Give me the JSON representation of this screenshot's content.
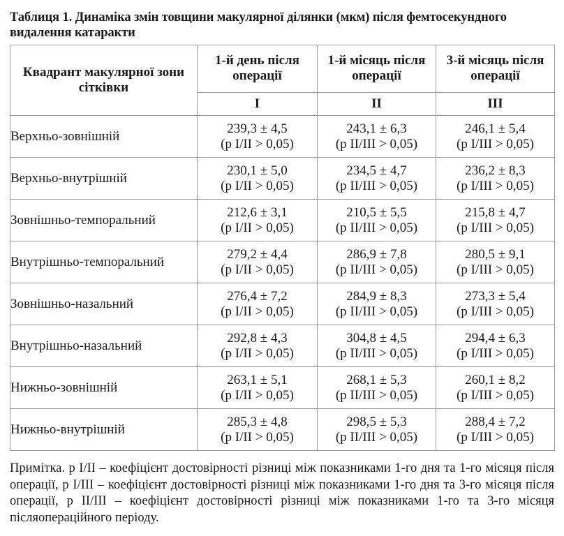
{
  "title": "Таблиця 1. Динаміка змін товщини макулярної ділянки (мкм) після фемтосекундного видалення катаракти",
  "table": {
    "quadrant_header": "Квадрант макулярної зони сітківки",
    "periods": [
      {
        "label": "1-й день після операції",
        "roman": "I"
      },
      {
        "label": "1-й місяць після операції",
        "roman": "II"
      },
      {
        "label": "3-й місяць після операції",
        "roman": "III"
      }
    ],
    "rows": [
      {
        "name": "Верхньо-зовнішній",
        "cells": [
          {
            "value": "239,3 ± 4,5",
            "p": "(p I/II > 0,05)"
          },
          {
            "value": "243,1 ± 6,3",
            "p": "(p II/III > 0,05)"
          },
          {
            "value": "246,1 ± 5,4",
            "p": "(p I/III > 0,05)"
          }
        ]
      },
      {
        "name": "Верхньо-внутрішній",
        "cells": [
          {
            "value": "230,1 ± 5,0",
            "p": "(p I/II > 0,05)"
          },
          {
            "value": "234,5 ± 4,7",
            "p": "(p II/III > 0,05)"
          },
          {
            "value": "236,2 ± 8,3",
            "p": "(p I/III > 0,05)"
          }
        ]
      },
      {
        "name": "Зовнішньо-темпоральний",
        "cells": [
          {
            "value": "212,6 ± 3,1",
            "p": "(p I/II > 0,05)"
          },
          {
            "value": "210,5 ± 5,5",
            "p": "(p II/III > 0,05)"
          },
          {
            "value": "215,8 ± 4,7",
            "p": "(p I/III > 0,05)"
          }
        ]
      },
      {
        "name": "Внутрішньо-темпоральний",
        "cells": [
          {
            "value": "279,2 ± 4,4",
            "p": "(p I/II > 0,05)"
          },
          {
            "value": "286,9 ± 7,8",
            "p": "(p II/III > 0,05)"
          },
          {
            "value": "280,5 ± 9,1",
            "p": "(p I/III > 0,05)"
          }
        ]
      },
      {
        "name": "Зовнішньо-назальний",
        "cells": [
          {
            "value": "276,4 ± 7,2",
            "p": "(p I/II > 0,05)"
          },
          {
            "value": "284,9 ± 8,3",
            "p": "(p II/III > 0,05)"
          },
          {
            "value": "273,3 ± 5,4",
            "p": "(p I/III > 0,05)"
          }
        ]
      },
      {
        "name": "Внутрішньо-назальний",
        "cells": [
          {
            "value": "292,8 ± 4,3",
            "p": "(p I/II > 0,05)"
          },
          {
            "value": "304,8 ± 4,5",
            "p": "(p II/III > 0,05)"
          },
          {
            "value": "294,4 ± 6,3",
            "p": "(p I/III > 0,05)"
          }
        ]
      },
      {
        "name": "Нижньо-зовнішній",
        "cells": [
          {
            "value": "263,1 ± 5,1",
            "p": "(p I/II > 0,05)"
          },
          {
            "value": "268,1 ± 5,3",
            "p": "(p II/III > 0,05)"
          },
          {
            "value": "260,1 ± 8,2",
            "p": "(p I/III > 0,05)"
          }
        ]
      },
      {
        "name": "Нижньо-внутрішній",
        "cells": [
          {
            "value": "285,3 ± 4,8",
            "p": "(p I/II > 0,05)"
          },
          {
            "value": "298,5 ± 5,3",
            "p": "(p II/III > 0,05)"
          },
          {
            "value": "288,4 ± 7,2",
            "p": "(p I/III > 0,05)"
          }
        ]
      }
    ]
  },
  "note": "Примітка. p I/II – коефіцієнт достовірності різниці між показниками 1-го дня та 1-го місяця після операції, p I/III – коефіцієнт достовірності різниці між показниками 1-го дня та 3-го місяця після операції, p II/III – коефіцієнт достовірності різниці між показниками 1-го та 3-го місяця післяопераційного періоду."
}
